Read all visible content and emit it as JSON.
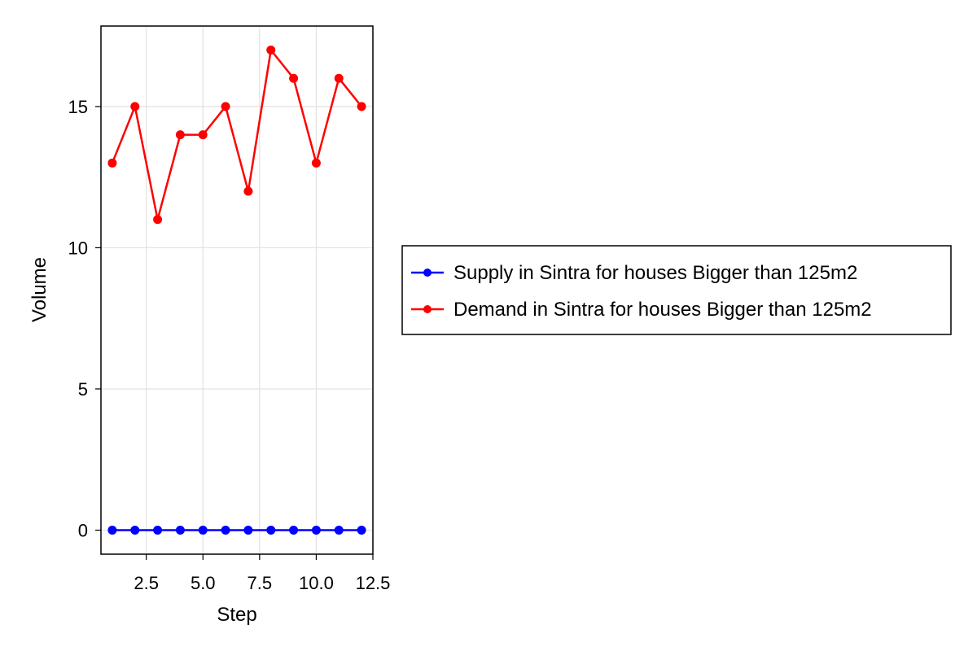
{
  "chart_data": {
    "type": "line",
    "xlabel": "Step",
    "ylabel": "Volume",
    "xlim": [
      0.5,
      12.5
    ],
    "ylim": [
      -0.85,
      17.85
    ],
    "xticks": [
      2.5,
      5.0,
      7.5,
      10.0,
      12.5
    ],
    "xtick_labels": [
      "2.5",
      "5.0",
      "7.5",
      "10.0",
      "12.5"
    ],
    "yticks": [
      0,
      5,
      10,
      15
    ],
    "ytick_labels": [
      "0",
      "5",
      "10",
      "15"
    ],
    "grid": true,
    "legend_position": "right",
    "x": [
      1,
      2,
      3,
      4,
      5,
      6,
      7,
      8,
      9,
      10,
      11,
      12
    ],
    "series": [
      {
        "name": "Supply in Sintra for houses Bigger than 125m2",
        "color": "#0000ff",
        "values": [
          0,
          0,
          0,
          0,
          0,
          0,
          0,
          0,
          0,
          0,
          0,
          0
        ]
      },
      {
        "name": "Demand in Sintra for houses Bigger than 125m2",
        "color": "#ff0000",
        "values": [
          13,
          15,
          11,
          14,
          14,
          15,
          12,
          17,
          16,
          13,
          16,
          15
        ]
      }
    ]
  }
}
